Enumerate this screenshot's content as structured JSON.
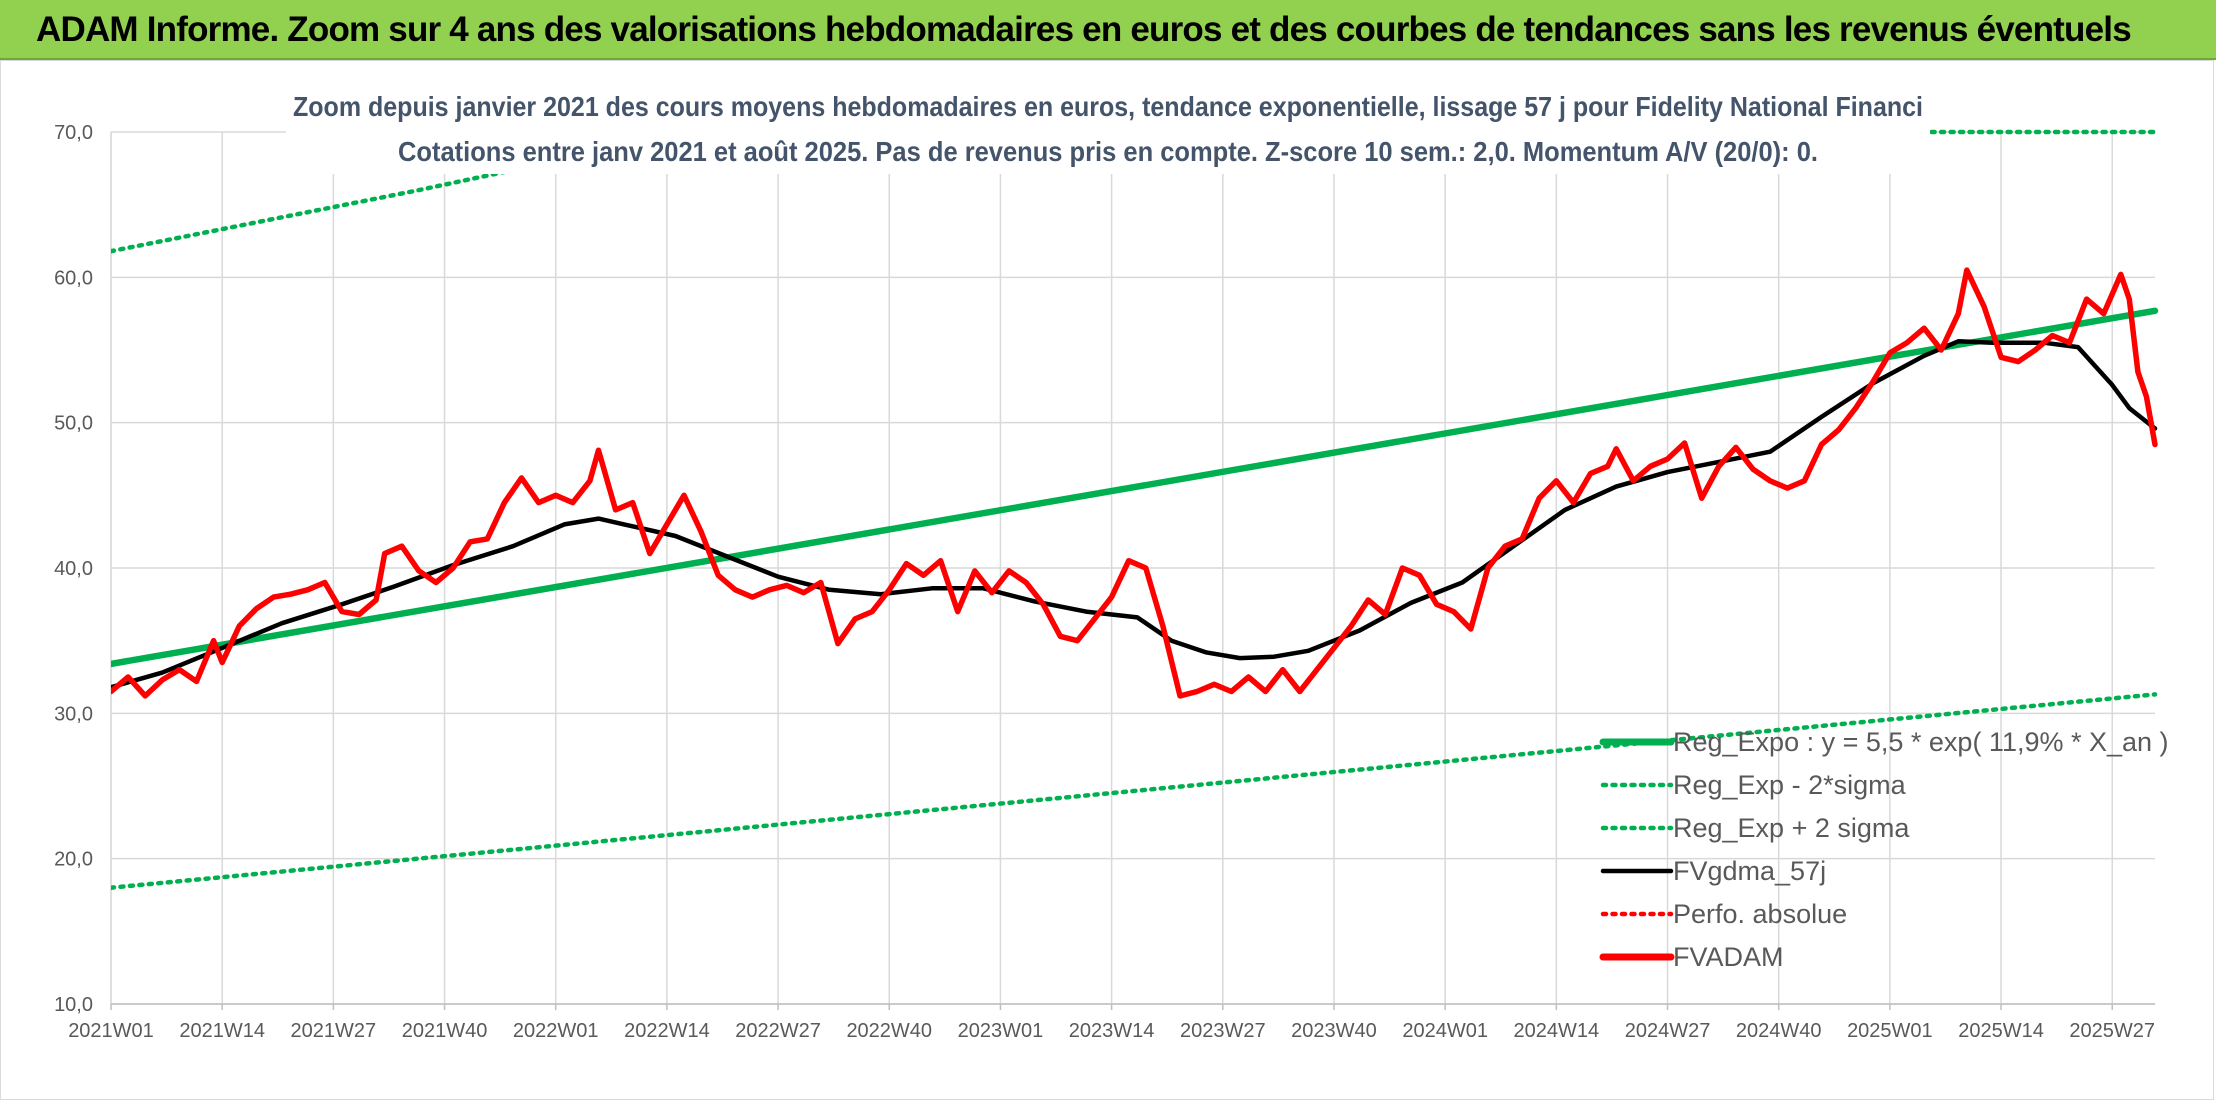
{
  "header": {
    "title": "ADAM Informe. Zoom sur 4 ans des valorisations hebdomadaires en euros et des courbes de tendances sans les revenus éventuels"
  },
  "chart_data": {
    "type": "line",
    "title": "Zoom depuis janvier 2021 des cours moyens hebdomadaires en euros, tendance exponentielle, lissage 57 j pour Fidelity National Financi",
    "subtitle": "Cotations entre janv 2021 et août 2025. Pas de revenus pris en compte. Z-score 10 sem.: 2,0. Momentum A/V (20/0): 0.",
    "xlabel": "",
    "ylabel": "",
    "ylim": [
      10,
      70
    ],
    "y_ticks": [
      "10,0",
      "20,0",
      "30,0",
      "40,0",
      "50,0",
      "60,0",
      "70,0"
    ],
    "x_ticks": [
      "2021W01",
      "2021W14",
      "2021W27",
      "2021W40",
      "2022W01",
      "2022W14",
      "2022W27",
      "2022W40",
      "2023W01",
      "2023W14",
      "2023W27",
      "2023W40",
      "2024W01",
      "2024W14",
      "2024W27",
      "2024W40",
      "2025W01",
      "2025W14",
      "2025W27"
    ],
    "x_range_weeks": [
      0,
      239
    ],
    "grid": true,
    "legend_position": "bottom-right",
    "series": [
      {
        "name": "Reg_Expo : y = 5,5 * exp( 11,9% * X_an )",
        "color": "#00b050",
        "style": "solid",
        "points": [
          [
            0,
            33.4
          ],
          [
            239,
            57.7
          ]
        ]
      },
      {
        "name": "Reg_Exp - 2*sigma",
        "color": "#00b050",
        "style": "dotted",
        "points": [
          [
            0,
            18.0
          ],
          [
            239,
            31.3
          ]
        ]
      },
      {
        "name": "Reg_Exp + 2 sigma",
        "color": "#00b050",
        "style": "dotted",
        "points": [
          [
            0,
            61.8
          ],
          [
            36,
            66.0
          ],
          [
            72,
            70.5
          ],
          [
            210,
            70.0
          ],
          [
            239,
            70.0
          ]
        ]
      },
      {
        "name": "FVgdma_57j",
        "color": "#000000",
        "style": "solid",
        "points": [
          [
            0,
            31.8
          ],
          [
            6,
            32.8
          ],
          [
            13,
            34.5
          ],
          [
            20,
            36.2
          ],
          [
            27,
            37.5
          ],
          [
            33,
            38.7
          ],
          [
            40,
            40.2
          ],
          [
            47,
            41.5
          ],
          [
            53,
            43.0
          ],
          [
            57,
            43.4
          ],
          [
            60,
            43.0
          ],
          [
            66,
            42.2
          ],
          [
            72,
            40.8
          ],
          [
            78,
            39.4
          ],
          [
            84,
            38.5
          ],
          [
            90,
            38.2
          ],
          [
            96,
            38.6
          ],
          [
            102,
            38.6
          ],
          [
            108,
            37.7
          ],
          [
            114,
            37.0
          ],
          [
            120,
            36.6
          ],
          [
            124,
            35.0
          ],
          [
            128,
            34.2
          ],
          [
            132,
            33.8
          ],
          [
            136,
            33.9
          ],
          [
            140,
            34.3
          ],
          [
            146,
            35.7
          ],
          [
            152,
            37.6
          ],
          [
            158,
            39.0
          ],
          [
            164,
            41.5
          ],
          [
            170,
            44.0
          ],
          [
            176,
            45.6
          ],
          [
            182,
            46.6
          ],
          [
            188,
            47.3
          ],
          [
            194,
            48.0
          ],
          [
            200,
            50.4
          ],
          [
            206,
            52.7
          ],
          [
            212,
            54.6
          ],
          [
            216,
            55.6
          ],
          [
            220,
            55.5
          ],
          [
            226,
            55.5
          ],
          [
            230,
            55.2
          ],
          [
            234,
            52.6
          ],
          [
            236,
            51.0
          ],
          [
            239,
            49.6
          ]
        ]
      },
      {
        "name": "Perfo. absolue",
        "color": "#ff0000",
        "style": "dotted",
        "points": []
      },
      {
        "name": "FVADAM",
        "color": "#ff0000",
        "style": "solid",
        "points": [
          [
            0,
            31.5
          ],
          [
            2,
            32.5
          ],
          [
            4,
            31.2
          ],
          [
            6,
            32.3
          ],
          [
            8,
            33.0
          ],
          [
            10,
            32.2
          ],
          [
            12,
            35.0
          ],
          [
            13,
            33.5
          ],
          [
            15,
            36.0
          ],
          [
            17,
            37.2
          ],
          [
            19,
            38.0
          ],
          [
            21,
            38.2
          ],
          [
            23,
            38.5
          ],
          [
            25,
            39.0
          ],
          [
            27,
            37.0
          ],
          [
            29,
            36.8
          ],
          [
            31,
            37.8
          ],
          [
            32,
            41.0
          ],
          [
            34,
            41.5
          ],
          [
            36,
            39.8
          ],
          [
            38,
            39.0
          ],
          [
            40,
            40.0
          ],
          [
            42,
            41.8
          ],
          [
            44,
            42.0
          ],
          [
            46,
            44.5
          ],
          [
            48,
            46.2
          ],
          [
            50,
            44.5
          ],
          [
            52,
            45.0
          ],
          [
            54,
            44.5
          ],
          [
            56,
            46.0
          ],
          [
            57,
            48.1
          ],
          [
            59,
            44.0
          ],
          [
            61,
            44.5
          ],
          [
            63,
            41.0
          ],
          [
            65,
            43.0
          ],
          [
            67,
            45.0
          ],
          [
            69,
            42.5
          ],
          [
            71,
            39.5
          ],
          [
            73,
            38.5
          ],
          [
            75,
            38.0
          ],
          [
            77,
            38.5
          ],
          [
            79,
            38.8
          ],
          [
            81,
            38.3
          ],
          [
            83,
            39.0
          ],
          [
            85,
            34.8
          ],
          [
            87,
            36.5
          ],
          [
            89,
            37.0
          ],
          [
            91,
            38.5
          ],
          [
            93,
            40.3
          ],
          [
            95,
            39.5
          ],
          [
            97,
            40.5
          ],
          [
            99,
            37.0
          ],
          [
            101,
            39.8
          ],
          [
            103,
            38.3
          ],
          [
            105,
            39.8
          ],
          [
            107,
            39.0
          ],
          [
            109,
            37.5
          ],
          [
            111,
            35.3
          ],
          [
            113,
            35.0
          ],
          [
            115,
            36.5
          ],
          [
            117,
            38.0
          ],
          [
            119,
            40.5
          ],
          [
            121,
            40.0
          ],
          [
            123,
            36.0
          ],
          [
            125,
            31.2
          ],
          [
            127,
            31.5
          ],
          [
            129,
            32.0
          ],
          [
            131,
            31.5
          ],
          [
            133,
            32.5
          ],
          [
            135,
            31.5
          ],
          [
            137,
            33.0
          ],
          [
            139,
            31.5
          ],
          [
            141,
            33.0
          ],
          [
            143,
            34.5
          ],
          [
            145,
            36.0
          ],
          [
            147,
            37.8
          ],
          [
            149,
            36.8
          ],
          [
            151,
            40.0
          ],
          [
            153,
            39.5
          ],
          [
            155,
            37.5
          ],
          [
            157,
            37.0
          ],
          [
            159,
            35.8
          ],
          [
            161,
            40.0
          ],
          [
            163,
            41.5
          ],
          [
            165,
            42.0
          ],
          [
            167,
            44.8
          ],
          [
            169,
            46.0
          ],
          [
            171,
            44.5
          ],
          [
            173,
            46.5
          ],
          [
            175,
            47.0
          ],
          [
            176,
            48.2
          ],
          [
            178,
            46.0
          ],
          [
            180,
            47.0
          ],
          [
            182,
            47.5
          ],
          [
            184,
            48.6
          ],
          [
            186,
            44.8
          ],
          [
            188,
            47.0
          ],
          [
            190,
            48.3
          ],
          [
            192,
            46.8
          ],
          [
            194,
            46.0
          ],
          [
            196,
            45.5
          ],
          [
            198,
            46.0
          ],
          [
            200,
            48.5
          ],
          [
            202,
            49.5
          ],
          [
            204,
            51.0
          ],
          [
            206,
            52.8
          ],
          [
            208,
            54.8
          ],
          [
            210,
            55.5
          ],
          [
            212,
            56.5
          ],
          [
            214,
            55.0
          ],
          [
            216,
            57.5
          ],
          [
            217,
            60.5
          ],
          [
            219,
            58.0
          ],
          [
            221,
            54.5
          ],
          [
            223,
            54.2
          ],
          [
            225,
            55.0
          ],
          [
            227,
            56.0
          ],
          [
            229,
            55.5
          ],
          [
            231,
            58.5
          ],
          [
            233,
            57.5
          ],
          [
            235,
            60.2
          ],
          [
            236,
            58.5
          ],
          [
            237,
            53.5
          ],
          [
            238,
            51.8
          ],
          [
            239,
            48.5
          ]
        ]
      }
    ]
  }
}
